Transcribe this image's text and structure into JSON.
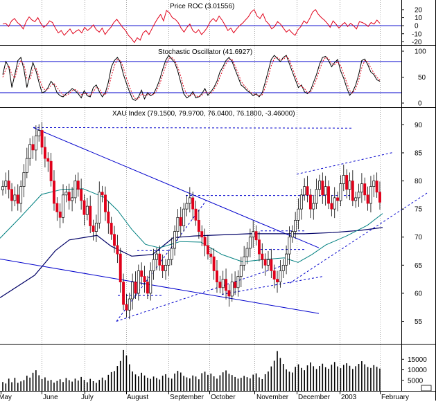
{
  "chart_data": [
    {
      "type": "line",
      "panel": "price_roc",
      "title": "Price ROC (3.01556)",
      "y_ticks": [
        20,
        10,
        0,
        -10,
        -20
      ],
      "ylim": [
        -24,
        32
      ],
      "hlines": [
        0
      ],
      "color": "#e0001a",
      "values": [
        2,
        3,
        -1,
        6,
        9,
        4,
        1,
        -4,
        5,
        11,
        7,
        5,
        10,
        3,
        -2,
        1,
        6,
        4,
        -3,
        -9,
        -6,
        -12,
        -8,
        -4,
        -10,
        -7,
        -5,
        -9,
        -2,
        -6,
        -3,
        1,
        -5,
        -8,
        -3,
        -11,
        -6,
        -2,
        4,
        8,
        3,
        -2,
        -6,
        -12,
        -16,
        -21,
        -15,
        -18,
        -9,
        -6,
        -11,
        -4,
        3,
        9,
        14,
        6,
        19,
        16,
        10,
        8,
        4,
        -3,
        -8,
        -2,
        2,
        -6,
        -9,
        -5,
        -11,
        -7,
        -2,
        5,
        9,
        5,
        12,
        7,
        1,
        -6,
        -3,
        -9,
        -4,
        0,
        3,
        7,
        11,
        17,
        20,
        12,
        9,
        15,
        6,
        2,
        -4,
        -1,
        5,
        2,
        -3,
        -8,
        -5,
        -9,
        -12,
        -5,
        -1,
        6,
        3,
        9,
        17,
        20,
        14,
        10,
        7,
        3,
        -2,
        6,
        2,
        -3,
        1,
        4,
        -1,
        3,
        0,
        -4,
        5,
        4,
        2,
        -1,
        4,
        2,
        7,
        3
      ]
    },
    {
      "type": "line",
      "panel": "stochastic",
      "title": "Stochastic Oscillator (41.6927)",
      "y_ticks": [
        100,
        50,
        0
      ],
      "ylim": [
        0,
        100
      ],
      "hlines": [
        80,
        20
      ],
      "series": [
        {
          "role": "k",
          "color": "#000000",
          "values": [
            55,
            80,
            70,
            30,
            55,
            82,
            88,
            65,
            30,
            55,
            78,
            62,
            40,
            20,
            22,
            30,
            42,
            35,
            20,
            14,
            12,
            18,
            22,
            28,
            24,
            18,
            10,
            24,
            14,
            12,
            30,
            35,
            22,
            12,
            20,
            40,
            70,
            82,
            88,
            78,
            55,
            38,
            22,
            8,
            5,
            12,
            25,
            8,
            20,
            14,
            18,
            30,
            45,
            65,
            82,
            92,
            85,
            78,
            62,
            40,
            18,
            10,
            14,
            22,
            10,
            12,
            18,
            28,
            15,
            22,
            30,
            42,
            60,
            70,
            82,
            88,
            80,
            65,
            50,
            35,
            30,
            24,
            20,
            14,
            18,
            12,
            20,
            40,
            62,
            84,
            92,
            86,
            80,
            88,
            92,
            76,
            60,
            45,
            30,
            35,
            22,
            18,
            24,
            40,
            55,
            75,
            88,
            90,
            82,
            70,
            78,
            84,
            62,
            48,
            30,
            15,
            22,
            35,
            55,
            82,
            85,
            74,
            60,
            55,
            45,
            42
          ]
        },
        {
          "role": "d",
          "color": "#e0001a",
          "values": [
            50,
            65,
            72,
            55,
            48,
            70,
            82,
            75,
            48,
            45,
            65,
            68,
            50,
            32,
            25,
            26,
            34,
            38,
            30,
            22,
            16,
            15,
            18,
            24,
            26,
            22,
            16,
            18,
            18,
            14,
            22,
            30,
            28,
            18,
            16,
            28,
            52,
            72,
            84,
            82,
            68,
            48,
            32,
            16,
            8,
            8,
            18,
            14,
            16,
            18,
            16,
            24,
            36,
            54,
            72,
            86,
            88,
            82,
            70,
            52,
            30,
            16,
            13,
            18,
            14,
            12,
            15,
            22,
            20,
            19,
            26,
            36,
            50,
            64,
            76,
            84,
            84,
            72,
            58,
            42,
            34,
            28,
            22,
            18,
            16,
            15,
            16,
            30,
            50,
            72,
            86,
            88,
            84,
            84,
            90,
            84,
            68,
            52,
            38,
            32,
            28,
            20,
            21,
            32,
            46,
            64,
            80,
            88,
            86,
            76,
            74,
            80,
            72,
            56,
            40,
            24,
            19,
            28,
            44,
            68,
            82,
            80,
            68,
            58,
            50,
            44
          ]
        }
      ]
    },
    {
      "type": "line",
      "panel": "xau_price",
      "title": "XAU Index (79.1500, 79.9700, 76.0400, 76.1800, -3.46000)",
      "y_ticks": [
        90,
        85,
        80,
        75,
        70,
        65,
        60,
        55
      ],
      "ylim": [
        51,
        93
      ],
      "x_tick_labels": [
        "May",
        "June",
        "July",
        "August",
        "September",
        "October",
        "November",
        "December",
        "2003",
        "February"
      ],
      "closes": [
        79,
        80,
        78.5,
        76.5,
        77.5,
        76,
        79,
        81.5,
        84,
        86.5,
        85.5,
        88,
        89,
        86,
        84,
        83.5,
        80,
        76,
        74.5,
        73.5,
        77.5,
        78,
        76.5,
        77,
        80,
        78.5,
        76.5,
        74,
        75.5,
        72,
        71,
        72.5,
        78,
        77.5,
        74.5,
        72.5,
        70.5,
        68.5,
        67,
        62,
        58,
        57,
        59,
        62,
        60,
        64,
        63,
        62,
        60,
        64,
        66,
        67,
        65,
        64,
        65,
        66,
        68,
        71,
        73.5,
        72,
        75,
        76,
        77,
        75,
        73,
        71,
        70,
        68.5,
        67,
        66.5,
        64,
        62,
        61,
        62.5,
        60.5,
        59.5,
        62,
        61,
        63,
        65,
        66.5,
        68,
        70,
        71,
        69.5,
        67,
        66,
        65,
        66,
        64,
        62.5,
        62,
        64,
        65,
        67,
        70,
        71,
        73,
        75,
        77.5,
        79,
        77.5,
        75,
        76,
        78.5,
        80,
        77.5,
        79,
        76,
        75,
        77,
        76.5,
        79.5,
        81,
        78.5,
        80,
        76.5,
        77,
        78,
        79.5,
        77.5,
        76,
        79,
        80,
        78,
        76.2
      ],
      "ma_slow": {
        "color": "#000066",
        "values": [
          [
            0,
            59.2
          ],
          [
            50,
            63.2
          ],
          [
            80,
            67.6
          ],
          [
            100,
            69.5
          ],
          [
            140,
            70.3
          ],
          [
            160,
            68.4
          ],
          [
            190,
            66.6
          ],
          [
            220,
            66.9
          ],
          [
            250,
            69.9
          ],
          [
            280,
            70.2
          ],
          [
            320,
            70.4
          ],
          [
            360,
            70.6
          ],
          [
            400,
            70.6
          ],
          [
            440,
            70.6
          ],
          [
            480,
            70.8
          ],
          [
            520,
            71.2
          ],
          [
            552,
            71.7
          ]
        ]
      },
      "ma_fast": {
        "color": "#008080",
        "values": [
          [
            0,
            69.8
          ],
          [
            30,
            73.6
          ],
          [
            60,
            77.6
          ],
          [
            90,
            78.5
          ],
          [
            120,
            78.6
          ],
          [
            150,
            77.1
          ],
          [
            170,
            74.7
          ],
          [
            190,
            71.4
          ],
          [
            210,
            68.7
          ],
          [
            230,
            68.1
          ],
          [
            260,
            69.2
          ],
          [
            290,
            69.1
          ],
          [
            320,
            66.9
          ],
          [
            350,
            65.6
          ],
          [
            380,
            66.0
          ],
          [
            410,
            66.3
          ],
          [
            430,
            65.5
          ],
          [
            450,
            66.9
          ],
          [
            470,
            68.6
          ],
          [
            500,
            70.2
          ],
          [
            530,
            72.1
          ],
          [
            552,
            74.2
          ]
        ]
      },
      "trendlines_solid": [
        {
          "from": [
            48,
            89.5
          ],
          "to": [
            460,
            68.1
          ]
        },
        {
          "from": [
            0,
            66.1
          ],
          "to": [
            460,
            56.4
          ]
        }
      ],
      "trendlines_dashed": [
        {
          "from": [
            48,
            89.5
          ],
          "to": [
            508,
            89.4
          ]
        },
        {
          "from": [
            168,
            55.0
          ],
          "to": [
            410,
            65.0
          ]
        },
        {
          "from": [
            168,
            55.0
          ],
          "to": [
            298,
            76.6
          ]
        },
        {
          "from": [
            170,
            59.6
          ],
          "to": [
            235,
            59.6
          ]
        },
        {
          "from": [
            198,
            67.6
          ],
          "to": [
            250,
            67.6
          ]
        },
        {
          "from": [
            268,
            77.4
          ],
          "to": [
            510,
            77.4
          ]
        },
        {
          "from": [
            320,
            59.8
          ],
          "to": [
            466,
            63.0
          ]
        },
        {
          "from": [
            376,
            71.1
          ],
          "to": [
            442,
            71.1
          ]
        },
        {
          "from": [
            376,
            67.8
          ],
          "to": [
            442,
            67.8
          ]
        },
        {
          "from": [
            418,
            61.8
          ],
          "to": [
            618,
            78.0
          ]
        },
        {
          "from": [
            428,
            81.2
          ],
          "to": [
            568,
            85.1
          ]
        }
      ]
    },
    {
      "type": "bar",
      "panel": "volume",
      "y_ticks": [
        "15000",
        "10000",
        "5000"
      ],
      "y_tick_values": [
        15000,
        10000,
        5000
      ],
      "ylim": [
        0,
        22000
      ],
      "color": "#000000",
      "values": [
        4200,
        3500,
        5800,
        4100,
        6200,
        3800,
        4500,
        5100,
        7200,
        6300,
        8600,
        9800,
        7400,
        5600,
        6400,
        4800,
        5200,
        3900,
        4700,
        5500,
        4200,
        6100,
        5100,
        4400,
        5800,
        4900,
        6600,
        5200,
        4100,
        5700,
        4600,
        3800,
        5200,
        6300,
        5100,
        7600,
        8900,
        9400,
        11800,
        14200,
        19400,
        16800,
        12600,
        9200,
        7800,
        6900,
        8600,
        7300,
        6200,
        5700,
        6800,
        6100,
        5400,
        7200,
        7900,
        6300,
        5800,
        8200,
        9500,
        8700,
        7100,
        6400,
        5900,
        7300,
        6800,
        5500,
        8400,
        9100,
        7600,
        8200,
        6900,
        5800,
        7400,
        8800,
        9700,
        8100,
        7500,
        6600,
        5800,
        6200,
        7100,
        6500,
        5900,
        7700,
        8300,
        6400,
        5600,
        7900,
        9200,
        11600,
        14300,
        18900,
        15600,
        12800,
        10200,
        9100,
        8700,
        11400,
        12600,
        10900,
        9800,
        12100,
        13500,
        11700,
        10400,
        11800,
        12900,
        11200,
        10500,
        12400,
        13700,
        11600,
        10800,
        12300,
        13100,
        11900,
        10400,
        11700,
        12800,
        14100,
        12600,
        11300,
        10900,
        12200,
        11400,
        10600
      ]
    }
  ]
}
